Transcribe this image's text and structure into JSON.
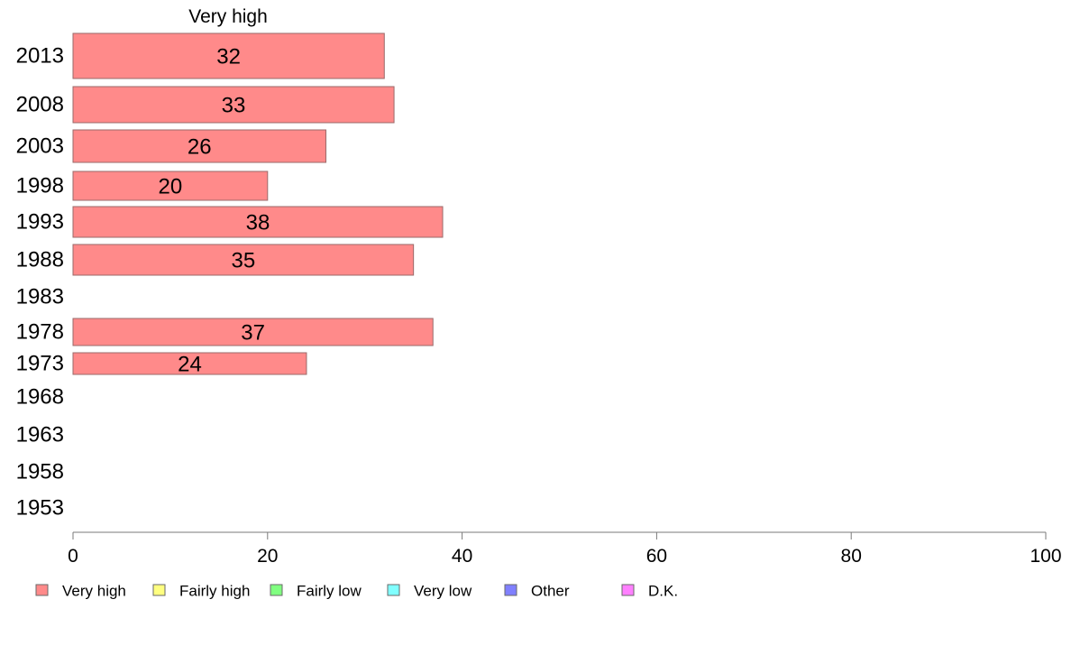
{
  "chart_data": {
    "type": "bar",
    "orientation": "horizontal",
    "title": "Very high",
    "categories": [
      "2013",
      "2008",
      "2003",
      "1998",
      "1993",
      "1988",
      "1983",
      "1978",
      "1973",
      "1968",
      "1963",
      "1958",
      "1953"
    ],
    "series": [
      {
        "name": "Very high",
        "color": "#ff8a8a",
        "values": [
          32,
          33,
          26,
          20,
          38,
          35,
          null,
          37,
          24,
          null,
          null,
          null,
          null
        ],
        "labels": [
          "32",
          "33",
          "26",
          "20",
          "38",
          "35",
          "",
          "37",
          "24",
          "",
          "",
          "",
          ""
        ]
      }
    ],
    "xlim": [
      0,
      100
    ],
    "x_ticks": [
      0,
      20,
      40,
      60,
      80,
      100
    ],
    "grid": false,
    "legend_position": "bottom",
    "legend": [
      {
        "label": "Very high",
        "color": "#ff8a8a"
      },
      {
        "label": "Fairly high",
        "color": "#ffff80"
      },
      {
        "label": "Fairly low",
        "color": "#80ff80"
      },
      {
        "label": "Very low",
        "color": "#80ffff"
      },
      {
        "label": "Other",
        "color": "#8080ff"
      },
      {
        "label": "D.K.",
        "color": "#ff80ff"
      }
    ]
  }
}
